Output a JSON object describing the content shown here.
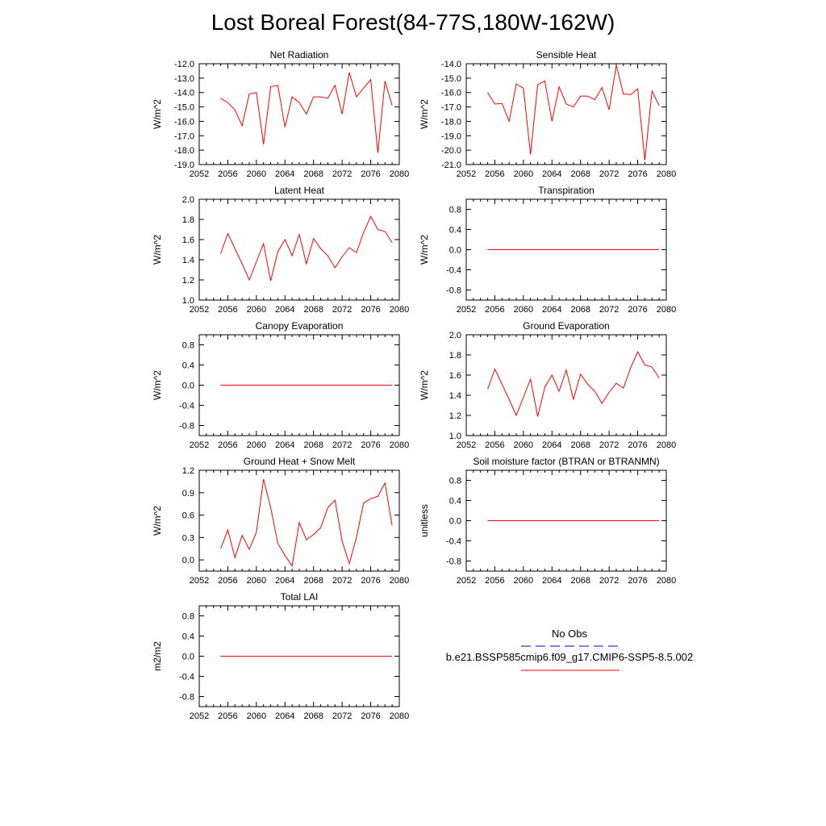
{
  "title": "Lost Boreal Forest(84-77S,180W-162W)",
  "colors": {
    "model": "#ff0000",
    "obs": "#0000cc",
    "axis": "#000000"
  },
  "legend": {
    "obs_label": "No Obs",
    "model_label": "b.e21.BSSP585cmip6.f09_g17.CMIP6-SSP5-8.5.002"
  },
  "chart_data": [
    {
      "type": "line",
      "title": "Net Radiation",
      "ylabel": "W/m^2",
      "ylim": [
        -19,
        -12
      ],
      "yticks": [
        -19,
        -18,
        -17,
        -16,
        -15,
        -14,
        -13,
        -12
      ],
      "ytick_labels": [
        "-19.0",
        "-18.0",
        "-17.0",
        "-16.0",
        "-15.0",
        "-14.0",
        "-13.0",
        "-12.0"
      ],
      "xlim": [
        2052,
        2080
      ],
      "xticks": [
        2052,
        2056,
        2060,
        2064,
        2068,
        2072,
        2076,
        2080
      ],
      "x": [
        2055,
        2056,
        2057,
        2058,
        2059,
        2060,
        2061,
        2062,
        2063,
        2064,
        2065,
        2066,
        2067,
        2068,
        2069,
        2070,
        2071,
        2072,
        2073,
        2074,
        2075,
        2076,
        2077,
        2078,
        2079
      ],
      "y": [
        -14.4,
        -14.7,
        -15.2,
        -16.3,
        -14.1,
        -14.0,
        -17.6,
        -13.6,
        -13.5,
        -16.4,
        -14.3,
        -14.7,
        -15.5,
        -14.3,
        -14.3,
        -14.4,
        -13.5,
        -15.5,
        -12.6,
        -14.3,
        -13.7,
        -13.1,
        -18.2,
        -13.2,
        -14.9
      ]
    },
    {
      "type": "line",
      "title": "Sensible Heat",
      "ylabel": "W/m^2",
      "ylim": [
        -21,
        -14
      ],
      "yticks": [
        -21,
        -20,
        -19,
        -18,
        -17,
        -16,
        -15,
        -14
      ],
      "ytick_labels": [
        "-21.0",
        "-20.0",
        "-19.0",
        "-18.0",
        "-17.0",
        "-16.0",
        "-15.0",
        "-14.0"
      ],
      "xlim": [
        2052,
        2080
      ],
      "xticks": [
        2052,
        2056,
        2060,
        2064,
        2068,
        2072,
        2076,
        2080
      ],
      "x": [
        2055,
        2056,
        2057,
        2058,
        2059,
        2060,
        2061,
        2062,
        2063,
        2064,
        2065,
        2066,
        2067,
        2068,
        2069,
        2070,
        2071,
        2072,
        2073,
        2074,
        2075,
        2076,
        2077,
        2078,
        2079
      ],
      "y": [
        -16.0,
        -16.8,
        -16.75,
        -18.0,
        -15.4,
        -15.7,
        -20.3,
        -15.45,
        -15.2,
        -18.0,
        -15.6,
        -16.8,
        -17.0,
        -16.25,
        -16.25,
        -16.5,
        -15.65,
        -17.2,
        -14.1,
        -16.1,
        -16.15,
        -15.75,
        -20.7,
        -15.9,
        -16.9
      ]
    },
    {
      "type": "line",
      "title": "Latent Heat",
      "ylabel": "W/m^2",
      "ylim": [
        1.0,
        2.0
      ],
      "yticks": [
        1.0,
        1.2,
        1.4,
        1.6,
        1.8,
        2.0
      ],
      "ytick_labels": [
        "1.0",
        "1.2",
        "1.4",
        "1.6",
        "1.8",
        "2.0"
      ],
      "xlim": [
        2052,
        2080
      ],
      "xticks": [
        2052,
        2056,
        2060,
        2064,
        2068,
        2072,
        2076,
        2080
      ],
      "x": [
        2055,
        2056,
        2057,
        2058,
        2059,
        2060,
        2061,
        2062,
        2063,
        2064,
        2065,
        2066,
        2067,
        2068,
        2069,
        2070,
        2071,
        2072,
        2073,
        2074,
        2075,
        2076,
        2077,
        2078,
        2079
      ],
      "y": [
        1.46,
        1.66,
        1.51,
        1.36,
        1.2,
        1.38,
        1.56,
        1.19,
        1.48,
        1.6,
        1.44,
        1.65,
        1.36,
        1.61,
        1.51,
        1.44,
        1.32,
        1.43,
        1.52,
        1.47,
        1.67,
        1.83,
        1.7,
        1.68,
        1.57
      ]
    },
    {
      "type": "line",
      "title": "Transpiration",
      "ylabel": "W/m^2",
      "ylim": [
        -1.0,
        1.0
      ],
      "yticks": [
        -0.8,
        -0.4,
        0.0,
        0.4,
        0.8
      ],
      "ytick_labels": [
        "-0.8",
        "-0.4",
        "0.0",
        "0.4",
        "0.8"
      ],
      "xlim": [
        2052,
        2080
      ],
      "xticks": [
        2052,
        2056,
        2060,
        2064,
        2068,
        2072,
        2076,
        2080
      ],
      "x": [
        2055,
        2079
      ],
      "y": [
        0.0,
        0.0
      ]
    },
    {
      "type": "line",
      "title": "Canopy Evaporation",
      "ylabel": "W/m^2",
      "ylim": [
        -1.0,
        1.0
      ],
      "yticks": [
        -0.8,
        -0.4,
        0.0,
        0.4,
        0.8
      ],
      "ytick_labels": [
        "-0.8",
        "-0.4",
        "0.0",
        "0.4",
        "0.8"
      ],
      "xlim": [
        2052,
        2080
      ],
      "xticks": [
        2052,
        2056,
        2060,
        2064,
        2068,
        2072,
        2076,
        2080
      ],
      "x": [
        2055,
        2079
      ],
      "y": [
        0.0,
        0.0
      ]
    },
    {
      "type": "line",
      "title": "Ground Evaporation",
      "ylabel": "W/m^2",
      "ylim": [
        1.0,
        2.0
      ],
      "yticks": [
        1.0,
        1.2,
        1.4,
        1.6,
        1.8,
        2.0
      ],
      "ytick_labels": [
        "1.0",
        "1.2",
        "1.4",
        "1.6",
        "1.8",
        "2.0"
      ],
      "xlim": [
        2052,
        2080
      ],
      "xticks": [
        2052,
        2056,
        2060,
        2064,
        2068,
        2072,
        2076,
        2080
      ],
      "x": [
        2055,
        2056,
        2057,
        2058,
        2059,
        2060,
        2061,
        2062,
        2063,
        2064,
        2065,
        2066,
        2067,
        2068,
        2069,
        2070,
        2071,
        2072,
        2073,
        2074,
        2075,
        2076,
        2077,
        2078,
        2079
      ],
      "y": [
        1.46,
        1.66,
        1.51,
        1.36,
        1.2,
        1.38,
        1.56,
        1.19,
        1.48,
        1.6,
        1.44,
        1.65,
        1.36,
        1.61,
        1.51,
        1.44,
        1.32,
        1.43,
        1.52,
        1.47,
        1.67,
        1.83,
        1.7,
        1.68,
        1.57
      ]
    },
    {
      "type": "line",
      "title": "Ground Heat + Snow Melt",
      "ylabel": "W/m^2",
      "ylim": [
        -0.15,
        1.2
      ],
      "yticks": [
        0.0,
        0.3,
        0.6,
        0.9,
        1.2
      ],
      "ytick_labels": [
        "0.0",
        "0.3",
        "0.6",
        "0.9",
        "1.2"
      ],
      "xlim": [
        2052,
        2080
      ],
      "xticks": [
        2052,
        2056,
        2060,
        2064,
        2068,
        2072,
        2076,
        2080
      ],
      "x": [
        2055,
        2056,
        2057,
        2058,
        2059,
        2060,
        2061,
        2062,
        2063,
        2064,
        2065,
        2066,
        2067,
        2068,
        2069,
        2070,
        2071,
        2072,
        2073,
        2074,
        2075,
        2076,
        2077,
        2078,
        2079
      ],
      "y": [
        0.15,
        0.4,
        0.03,
        0.33,
        0.14,
        0.37,
        1.08,
        0.7,
        0.22,
        0.06,
        -0.08,
        0.5,
        0.27,
        0.34,
        0.43,
        0.7,
        0.8,
        0.25,
        -0.05,
        0.3,
        0.76,
        0.82,
        0.85,
        1.03,
        0.46
      ]
    },
    {
      "type": "line",
      "title": "Soil moisture factor (BTRAN or BTRANMN)",
      "ylabel": "unitless",
      "ylim": [
        -1.0,
        1.0
      ],
      "yticks": [
        -0.8,
        -0.4,
        0.0,
        0.4,
        0.8
      ],
      "ytick_labels": [
        "-0.8",
        "-0.4",
        "0.0",
        "0.4",
        "0.8"
      ],
      "xlim": [
        2052,
        2080
      ],
      "xticks": [
        2052,
        2056,
        2060,
        2064,
        2068,
        2072,
        2076,
        2080
      ],
      "x": [
        2055,
        2079
      ],
      "y": [
        0.0,
        0.0
      ]
    },
    {
      "type": "line",
      "title": "Total LAI",
      "ylabel": "m2/m2",
      "ylim": [
        -1.0,
        1.0
      ],
      "yticks": [
        -0.8,
        -0.4,
        0.0,
        0.4,
        0.8
      ],
      "ytick_labels": [
        "-0.8",
        "-0.4",
        "0.0",
        "0.4",
        "0.8"
      ],
      "xlim": [
        2052,
        2080
      ],
      "xticks": [
        2052,
        2056,
        2060,
        2064,
        2068,
        2072,
        2076,
        2080
      ],
      "x": [
        2055,
        2079
      ],
      "y": [
        0.0,
        0.0
      ]
    }
  ]
}
